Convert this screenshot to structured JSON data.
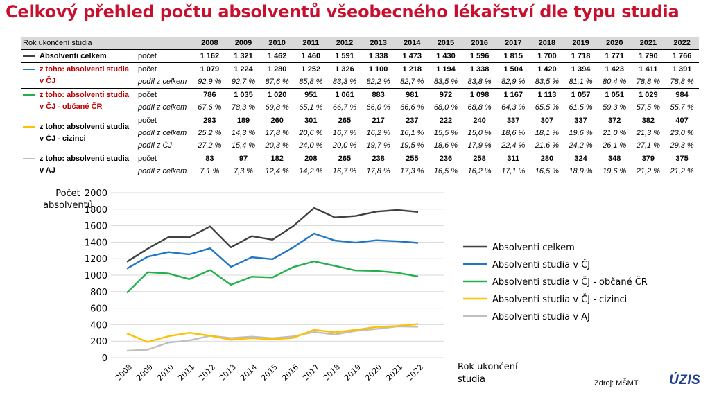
{
  "title": "Celkový přehled počtu absolventů všeobecného lékařství dle typu studia",
  "table": {
    "corner": "Rok ukončení studia",
    "years": [
      "2008",
      "2009",
      "2010",
      "2011",
      "2012",
      "2013",
      "2014",
      "2015",
      "2016",
      "2017",
      "2018",
      "2019",
      "2020",
      "2021",
      "2022"
    ],
    "groups": [
      {
        "label": "Absolventi celkem",
        "color": "#404040",
        "labelColor": "#000000",
        "rows": [
          {
            "sub": "počet",
            "main": true,
            "values": [
              "1 162",
              "1 321",
              "1 462",
              "1 460",
              "1 591",
              "1 338",
              "1 473",
              "1 430",
              "1 596",
              "1 815",
              "1 700",
              "1 718",
              "1 771",
              "1 790",
              "1 766"
            ]
          }
        ]
      },
      {
        "label": "z toho: absolventi studia v ČJ",
        "color": "#1f77c4",
        "labelColor": "#c00000",
        "rows": [
          {
            "sub": "počet",
            "main": true,
            "values": [
              "1 079",
              "1 224",
              "1 280",
              "1 252",
              "1 326",
              "1 100",
              "1 218",
              "1 194",
              "1 338",
              "1 504",
              "1 420",
              "1 394",
              "1 423",
              "1 411",
              "1 391"
            ]
          },
          {
            "sub": "podíl z celkem",
            "main": false,
            "values": [
              "92,9 %",
              "92,7 %",
              "87,6 %",
              "85,8 %",
              "83,3 %",
              "82,2 %",
              "82,7 %",
              "83,5 %",
              "83,8 %",
              "82,9 %",
              "83,5 %",
              "81,1 %",
              "80,4 %",
              "78,8 %",
              "78,8 %"
            ]
          }
        ]
      },
      {
        "label": "z toho: absolventi studia v ČJ - občané ČR",
        "color": "#22b04b",
        "labelColor": "#c00000",
        "rows": [
          {
            "sub": "počet",
            "main": true,
            "values": [
              "786",
              "1 035",
              "1 020",
              "951",
              "1 061",
              "883",
              "981",
              "972",
              "1 098",
              "1 167",
              "1 113",
              "1 057",
              "1 051",
              "1 029",
              "984"
            ]
          },
          {
            "sub": "podíl z celkem",
            "main": false,
            "values": [
              "67,6 %",
              "78,3 %",
              "69,8 %",
              "65,1 %",
              "66,7 %",
              "66,0 %",
              "66,6 %",
              "68,0 %",
              "68,8 %",
              "64,3 %",
              "65,5 %",
              "61,5 %",
              "59,3 %",
              "57,5 %",
              "55,7 %"
            ]
          }
        ]
      },
      {
        "label": "z toho: absolventi studia v ČJ - cizinci",
        "color": "#ffc000",
        "labelColor": "#000000",
        "rows": [
          {
            "sub": "počet",
            "main": true,
            "values": [
              "293",
              "189",
              "260",
              "301",
              "265",
              "217",
              "237",
              "222",
              "240",
              "337",
              "307",
              "337",
              "372",
              "382",
              "407"
            ]
          },
          {
            "sub": "podíl z celkem",
            "main": false,
            "values": [
              "25,2 %",
              "14,3 %",
              "17,8 %",
              "20,6 %",
              "16,7 %",
              "16,2 %",
              "16,1 %",
              "15,5 %",
              "15,0 %",
              "18,6 %",
              "18,1 %",
              "19,6 %",
              "21,0 %",
              "21,3 %",
              "23,0 %"
            ]
          },
          {
            "sub": "podíl z ČJ",
            "main": false,
            "values": [
              "27,2 %",
              "15,4 %",
              "20,3 %",
              "24,0 %",
              "20,0 %",
              "19,7 %",
              "19,5 %",
              "18,6 %",
              "17,9 %",
              "22,4 %",
              "21,6 %",
              "24,2 %",
              "26,1 %",
              "27,1 %",
              "29,3 %"
            ]
          }
        ]
      },
      {
        "label": "z toho: absolventi studia v AJ",
        "color": "#bfbfbf",
        "labelColor": "#000000",
        "rows": [
          {
            "sub": "počet",
            "main": true,
            "values": [
              "83",
              "97",
              "182",
              "208",
              "265",
              "238",
              "255",
              "236",
              "258",
              "311",
              "280",
              "324",
              "348",
              "379",
              "375"
            ]
          },
          {
            "sub": "podíl z celkem",
            "main": false,
            "values": [
              "7,1 %",
              "7,3 %",
              "12,4 %",
              "14,2 %",
              "16,7 %",
              "17,8 %",
              "17,3 %",
              "16,5 %",
              "16,2 %",
              "17,1 %",
              "16,5 %",
              "18,9 %",
              "19,6 %",
              "21,2 %",
              "21,2 %"
            ]
          }
        ]
      }
    ]
  },
  "chart_data": {
    "type": "line",
    "title": "",
    "ylabel": "Počet absolventů",
    "xlabel": "Rok ukončení studia",
    "ylim": [
      0,
      2000
    ],
    "yticks": [
      0,
      200,
      400,
      600,
      800,
      1000,
      1200,
      1400,
      1600,
      1800,
      2000
    ],
    "x": [
      "2008",
      "2009",
      "2010",
      "2011",
      "2012",
      "2013",
      "2014",
      "2015",
      "2016",
      "2017",
      "2018",
      "2019",
      "2020",
      "2021",
      "2022"
    ],
    "legend_position": "right",
    "series": [
      {
        "name": "Absolventi celkem",
        "color": "#404040",
        "values": [
          1162,
          1321,
          1462,
          1460,
          1591,
          1338,
          1473,
          1430,
          1596,
          1815,
          1700,
          1718,
          1771,
          1790,
          1766
        ]
      },
      {
        "name": "Absolventi studia v ČJ",
        "color": "#1f77c4",
        "values": [
          1079,
          1224,
          1280,
          1252,
          1326,
          1100,
          1218,
          1194,
          1338,
          1504,
          1420,
          1394,
          1423,
          1411,
          1391
        ]
      },
      {
        "name": "Absolventi studia v ČJ - občané ČR",
        "color": "#22b04b",
        "values": [
          786,
          1035,
          1020,
          951,
          1061,
          883,
          981,
          972,
          1098,
          1167,
          1113,
          1057,
          1051,
          1029,
          984
        ]
      },
      {
        "name": "Absolventi studia v ČJ - cizinci",
        "color": "#ffc000",
        "values": [
          293,
          189,
          260,
          301,
          265,
          217,
          237,
          222,
          240,
          337,
          307,
          337,
          372,
          382,
          407
        ]
      },
      {
        "name": "Absolventi studia v AJ",
        "color": "#bfbfbf",
        "values": [
          83,
          97,
          182,
          208,
          265,
          238,
          255,
          236,
          258,
          311,
          280,
          324,
          348,
          379,
          375
        ]
      }
    ]
  },
  "footer": {
    "source": "Zdroj: MŠMT",
    "logo": "ÚZIS"
  }
}
